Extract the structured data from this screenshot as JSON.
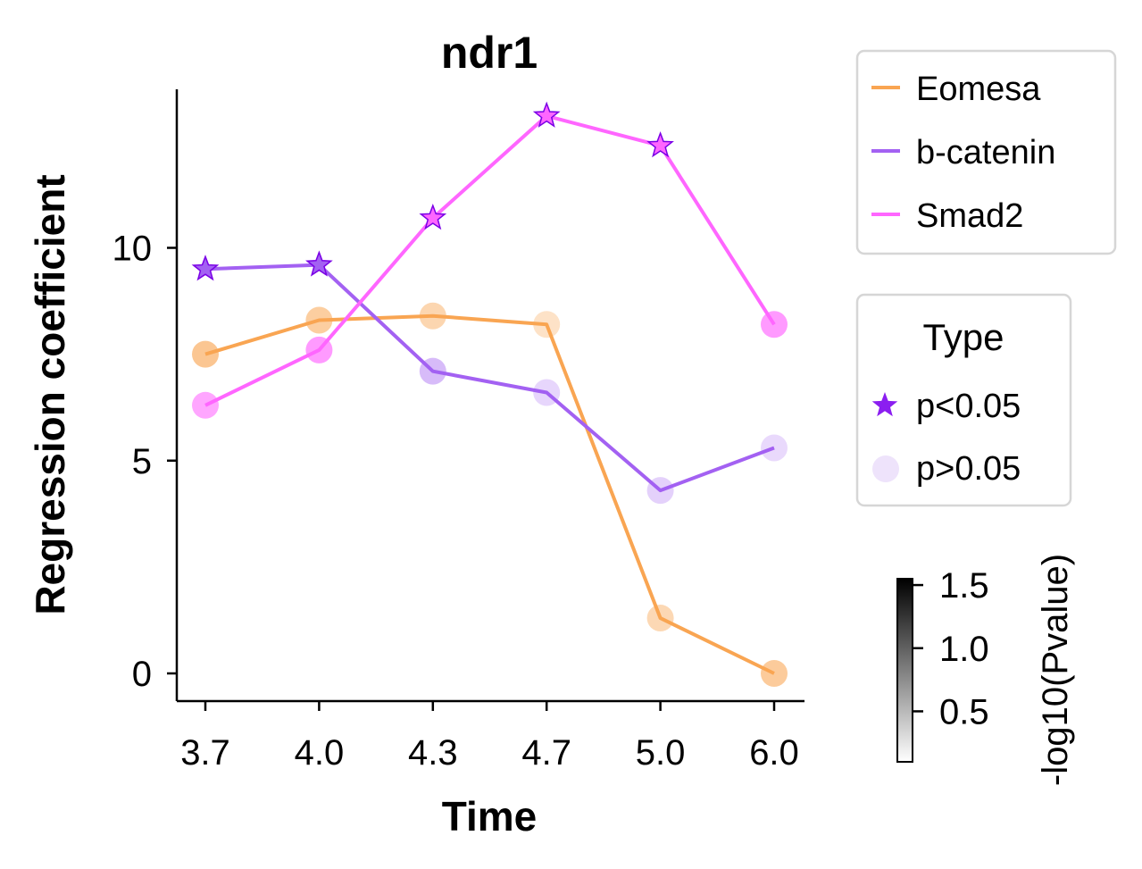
{
  "chart_data": {
    "type": "line",
    "title": "ndr1",
    "xlabel": "Time",
    "ylabel": "Regression coefficient",
    "categories": [
      "3.7",
      "4.0",
      "4.3",
      "4.7",
      "5.0",
      "6.0"
    ],
    "ylim": [
      -0.65,
      13.7
    ],
    "yticks": [
      0,
      5,
      10
    ],
    "grid": false,
    "series": [
      {
        "name": "Eomesa",
        "color": "#f9a552",
        "values": [
          7.5,
          8.3,
          8.4,
          8.2,
          1.3,
          0.0
        ],
        "type": [
          "p>0.05",
          "p>0.05",
          "p>0.05",
          "p>0.05",
          "p>0.05",
          "p>0.05"
        ],
        "neglog10p": [
          0.9,
          0.75,
          0.6,
          0.35,
          0.55,
          0.8
        ]
      },
      {
        "name": "b-catenin",
        "color": "#a361f2",
        "values": [
          9.5,
          9.6,
          7.1,
          6.6,
          4.3,
          5.3
        ],
        "type": [
          "p<0.05",
          "p<0.05",
          "p>0.05",
          "p>0.05",
          "p>0.05",
          "p>0.05"
        ],
        "neglog10p": [
          1.5,
          1.5,
          0.55,
          0.25,
          0.3,
          0.2
        ]
      },
      {
        "name": "Smad2",
        "color": "#ff66ff",
        "values": [
          6.3,
          7.6,
          10.7,
          13.1,
          12.4,
          8.2
        ],
        "type": [
          "p>0.05",
          "p>0.05",
          "p<0.05",
          "p<0.05",
          "p<0.05",
          "p>0.05"
        ],
        "neglog10p": [
          0.8,
          0.95,
          1.5,
          1.5,
          1.5,
          0.95
        ]
      }
    ],
    "legend": {
      "series_title": "",
      "type_title": "Type",
      "type_entries": [
        "p<0.05",
        "p>0.05"
      ],
      "placement": "right"
    },
    "colorbar": {
      "label": "-log10(Pvalue)",
      "ticks": [
        "0.5",
        "1.0",
        "1.5"
      ],
      "range": [
        0.1,
        1.55
      ],
      "colors": [
        "#ffffff",
        "#000000"
      ]
    }
  },
  "type_markers": {
    "significant": "star-icon",
    "not_significant": "circle-icon",
    "significant_color": "#8b1ef0",
    "not_significant_color": "#eee3fb"
  }
}
